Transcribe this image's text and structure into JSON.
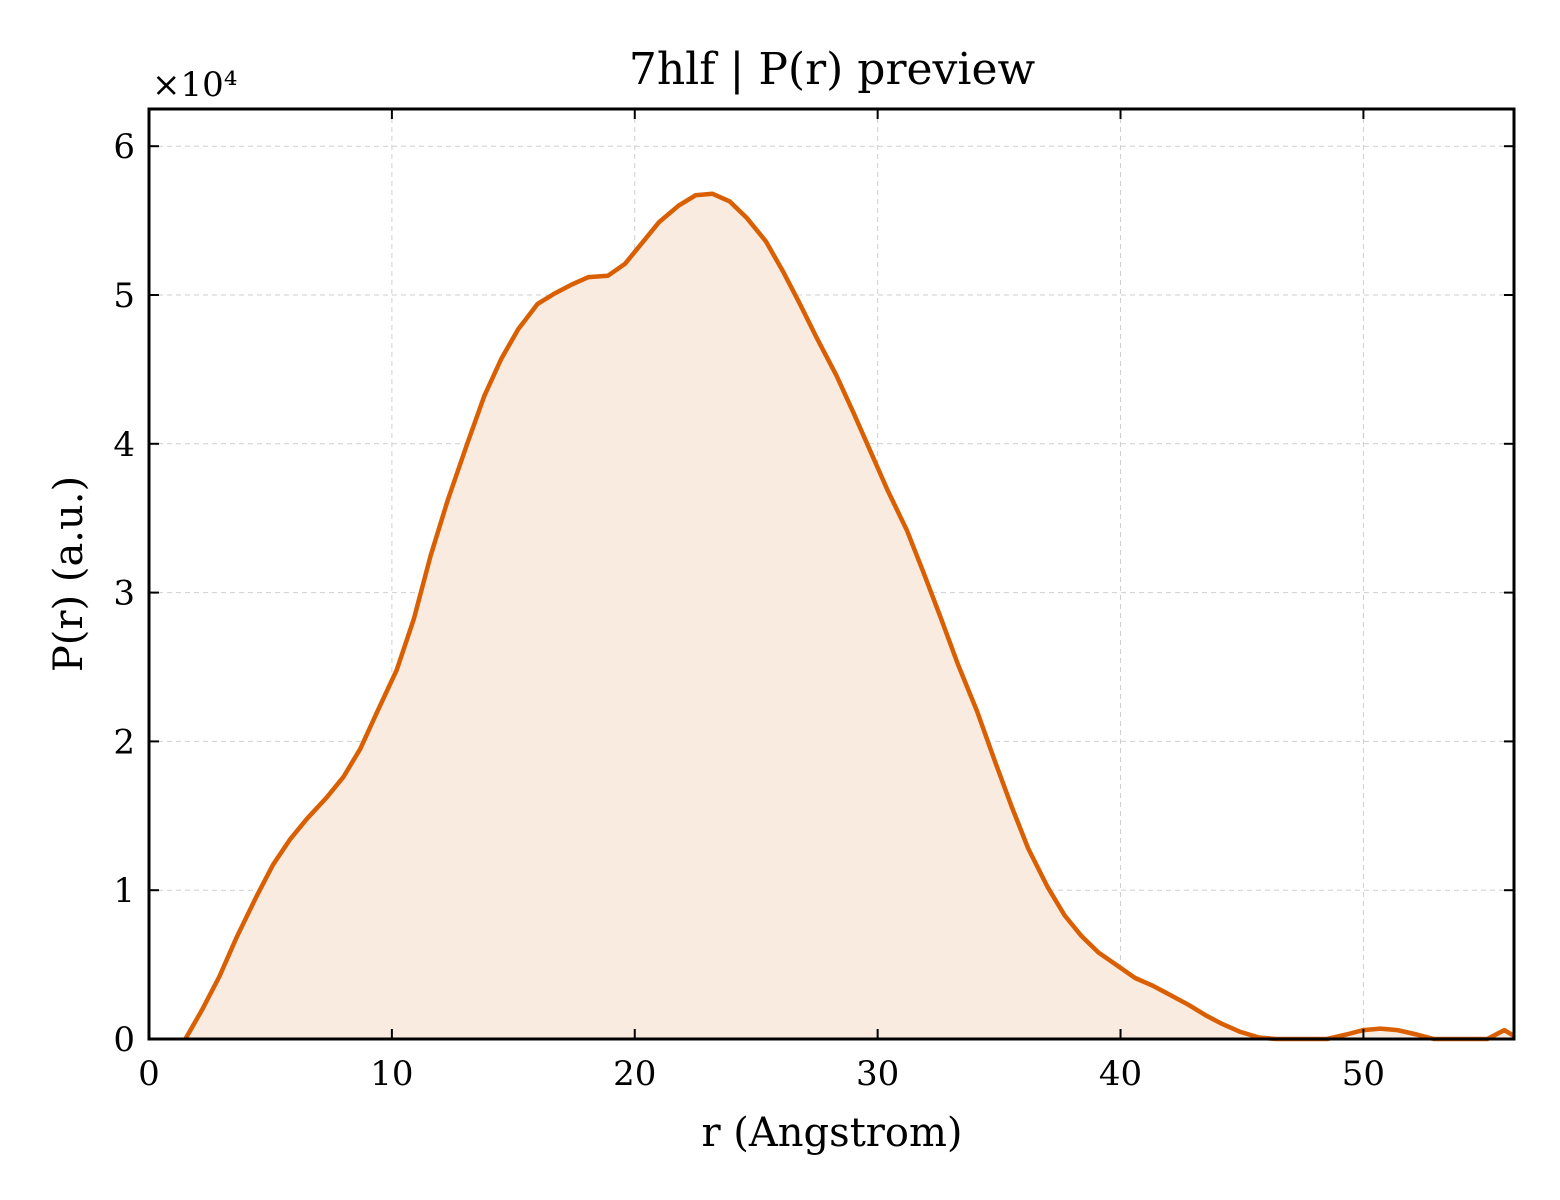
{
  "chart_data": {
    "type": "area",
    "title": "7hlf | P(r) preview",
    "xlabel": "r (Angstrom)",
    "ylabel": "P(r) (a.u.)",
    "y_multiplier_label": "×10⁴",
    "xlim": [
      0,
      56.2
    ],
    "ylim": [
      0,
      62500
    ],
    "xticks": [
      0,
      10,
      20,
      30,
      40,
      50
    ],
    "yticks": [
      0,
      10000,
      20000,
      30000,
      40000,
      50000,
      60000
    ],
    "ytick_labels": [
      "0",
      "1",
      "2",
      "3",
      "4",
      "5",
      "6"
    ],
    "grid": true,
    "colors": {
      "line": "#d95f02",
      "fill": "#f9ebe0"
    },
    "x": [
      1.5,
      2.2,
      2.9,
      3.6,
      4.4,
      5.1,
      5.8,
      6.5,
      7.3,
      8.0,
      8.7,
      9.4,
      10.2,
      10.9,
      11.6,
      12.3,
      13.1,
      13.8,
      14.5,
      15.2,
      16.0,
      16.7,
      17.4,
      18.1,
      18.9,
      19.6,
      20.3,
      21.0,
      21.8,
      22.5,
      23.2,
      23.9,
      24.6,
      25.4,
      26.1,
      26.8,
      27.5,
      28.3,
      29.0,
      29.7,
      30.4,
      31.2,
      31.9,
      32.6,
      33.3,
      34.1,
      34.8,
      35.5,
      36.2,
      37.0,
      37.7,
      38.4,
      39.1,
      39.9,
      40.6,
      41.3,
      42.0,
      42.8,
      43.5,
      44.2,
      44.9,
      45.7,
      46.4,
      47.1,
      47.8,
      48.5,
      49.3,
      50.0,
      50.7,
      51.4,
      52.2,
      52.9,
      53.6,
      54.3,
      55.1,
      55.8,
      56.2
    ],
    "y": [
      0,
      2000,
      4200,
      6800,
      9500,
      11700,
      13400,
      14800,
      16200,
      17600,
      19500,
      22000,
      24800,
      28200,
      32500,
      36200,
      40000,
      43200,
      45700,
      47700,
      49400,
      50100,
      50700,
      51200,
      51300,
      52100,
      53500,
      54900,
      56000,
      56700,
      56800,
      56300,
      55200,
      53600,
      51600,
      49400,
      47100,
      44600,
      42100,
      39500,
      36900,
      34200,
      31300,
      28300,
      25200,
      22000,
      18800,
      15700,
      12800,
      10200,
      8300,
      6900,
      5800,
      4900,
      4100,
      3600,
      3000,
      2300,
      1600,
      1000,
      500,
      100,
      0,
      0,
      0,
      0,
      300,
      600,
      700,
      600,
      300,
      0,
      0,
      0,
      0,
      600,
      200
    ]
  }
}
